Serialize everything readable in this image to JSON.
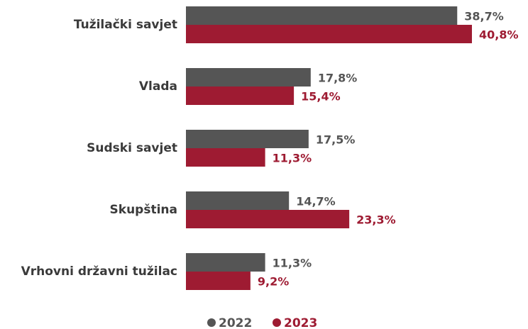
{
  "chart_data": {
    "type": "bar",
    "orientation": "horizontal",
    "categories": [
      "Tužilački savjet",
      "Vlada",
      "Sudski savjet",
      "Skupština",
      "Vrhovni državni tužilac"
    ],
    "series": [
      {
        "name": "2022",
        "color": "#555555",
        "values": [
          38.7,
          17.8,
          17.5,
          14.7,
          11.3
        ],
        "value_labels": [
          "38,7%",
          "17,8%",
          "17,5%",
          "14,7%",
          "11,3%"
        ]
      },
      {
        "name": "2023",
        "color": "#9e1b32",
        "values": [
          40.8,
          15.4,
          11.3,
          23.3,
          9.2
        ],
        "value_labels": [
          "40,8%",
          "15,4%",
          "11,3%",
          "23,3%",
          "9,2%"
        ]
      }
    ],
    "legend": "bottom"
  }
}
